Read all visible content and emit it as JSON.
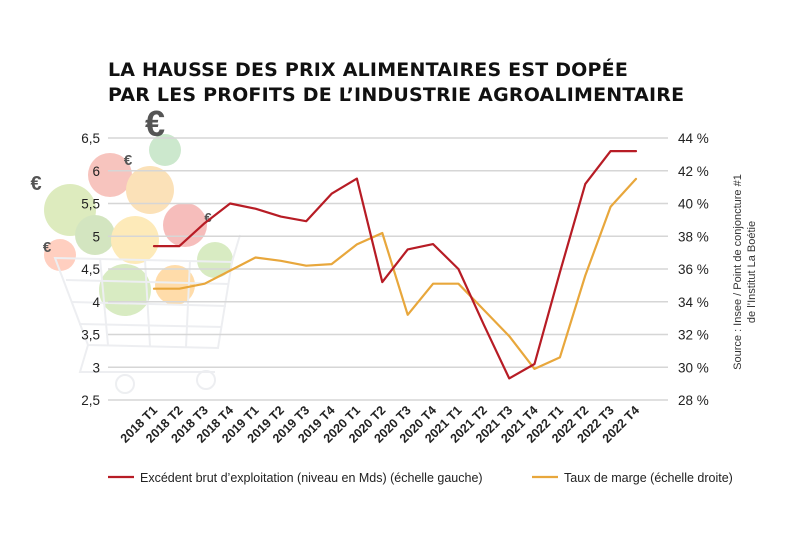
{
  "title_lines": [
    "LA HAUSSE DES PRIX ALIMENTAIRES EST DOPÉE",
    "PAR LES PROFITS DE L’INDUSTRIE AGROALIMENTAIRE"
  ],
  "source_lines": [
    "Source : Insee / Point de conjoncture #1",
    "de l’Institut La Boétie"
  ],
  "decorations": {
    "illustration": "shopping-cart-with-groceries",
    "euro_symbol": "€"
  },
  "chart_data": {
    "type": "line",
    "categories": [
      "2018 T1",
      "2018 T2",
      "2018 T3",
      "2018 T4",
      "2019 T1",
      "2019 T2",
      "2019 T3",
      "2019 T4",
      "2020 T1",
      "2020 T2",
      "2020 T3",
      "2020 T4",
      "2021 T1",
      "2021 T2",
      "2021 T3",
      "2021 T4",
      "2022 T1",
      "2022 T2",
      "2022 T3",
      "2022 T4"
    ],
    "axes": {
      "left": {
        "min": 2.5,
        "max": 6.5,
        "ticks": [
          "2,5",
          "3",
          "3,5",
          "4",
          "4,5",
          "5",
          "5,5",
          "6",
          "6,5"
        ]
      },
      "right": {
        "min": 28,
        "max": 44,
        "ticks": [
          "28 %",
          "30 %",
          "32 %",
          "34 %",
          "36 %",
          "38 %",
          "40 %",
          "42 %",
          "44 %"
        ]
      }
    },
    "grid": true,
    "legend_position": "bottom",
    "series": [
      {
        "name": "Excédent brut d’exploitation (niveau en Mds) (échelle gauche)",
        "axis": "left",
        "color": "#b71c25",
        "values": [
          4.85,
          4.85,
          5.2,
          5.5,
          5.42,
          5.3,
          5.23,
          5.65,
          5.88,
          4.3,
          4.8,
          4.88,
          4.5,
          3.65,
          2.83,
          3.05,
          4.45,
          5.8,
          6.3,
          6.3
        ]
      },
      {
        "name": "Taux de marge (échelle droite)",
        "axis": "right",
        "color": "#e8a73c",
        "values": [
          34.8,
          34.8,
          35.1,
          35.9,
          36.7,
          36.5,
          36.2,
          36.3,
          37.5,
          38.2,
          33.2,
          35.1,
          35.1,
          33.5,
          31.9,
          29.9,
          30.6,
          35.6,
          39.8,
          41.5
        ]
      }
    ]
  }
}
